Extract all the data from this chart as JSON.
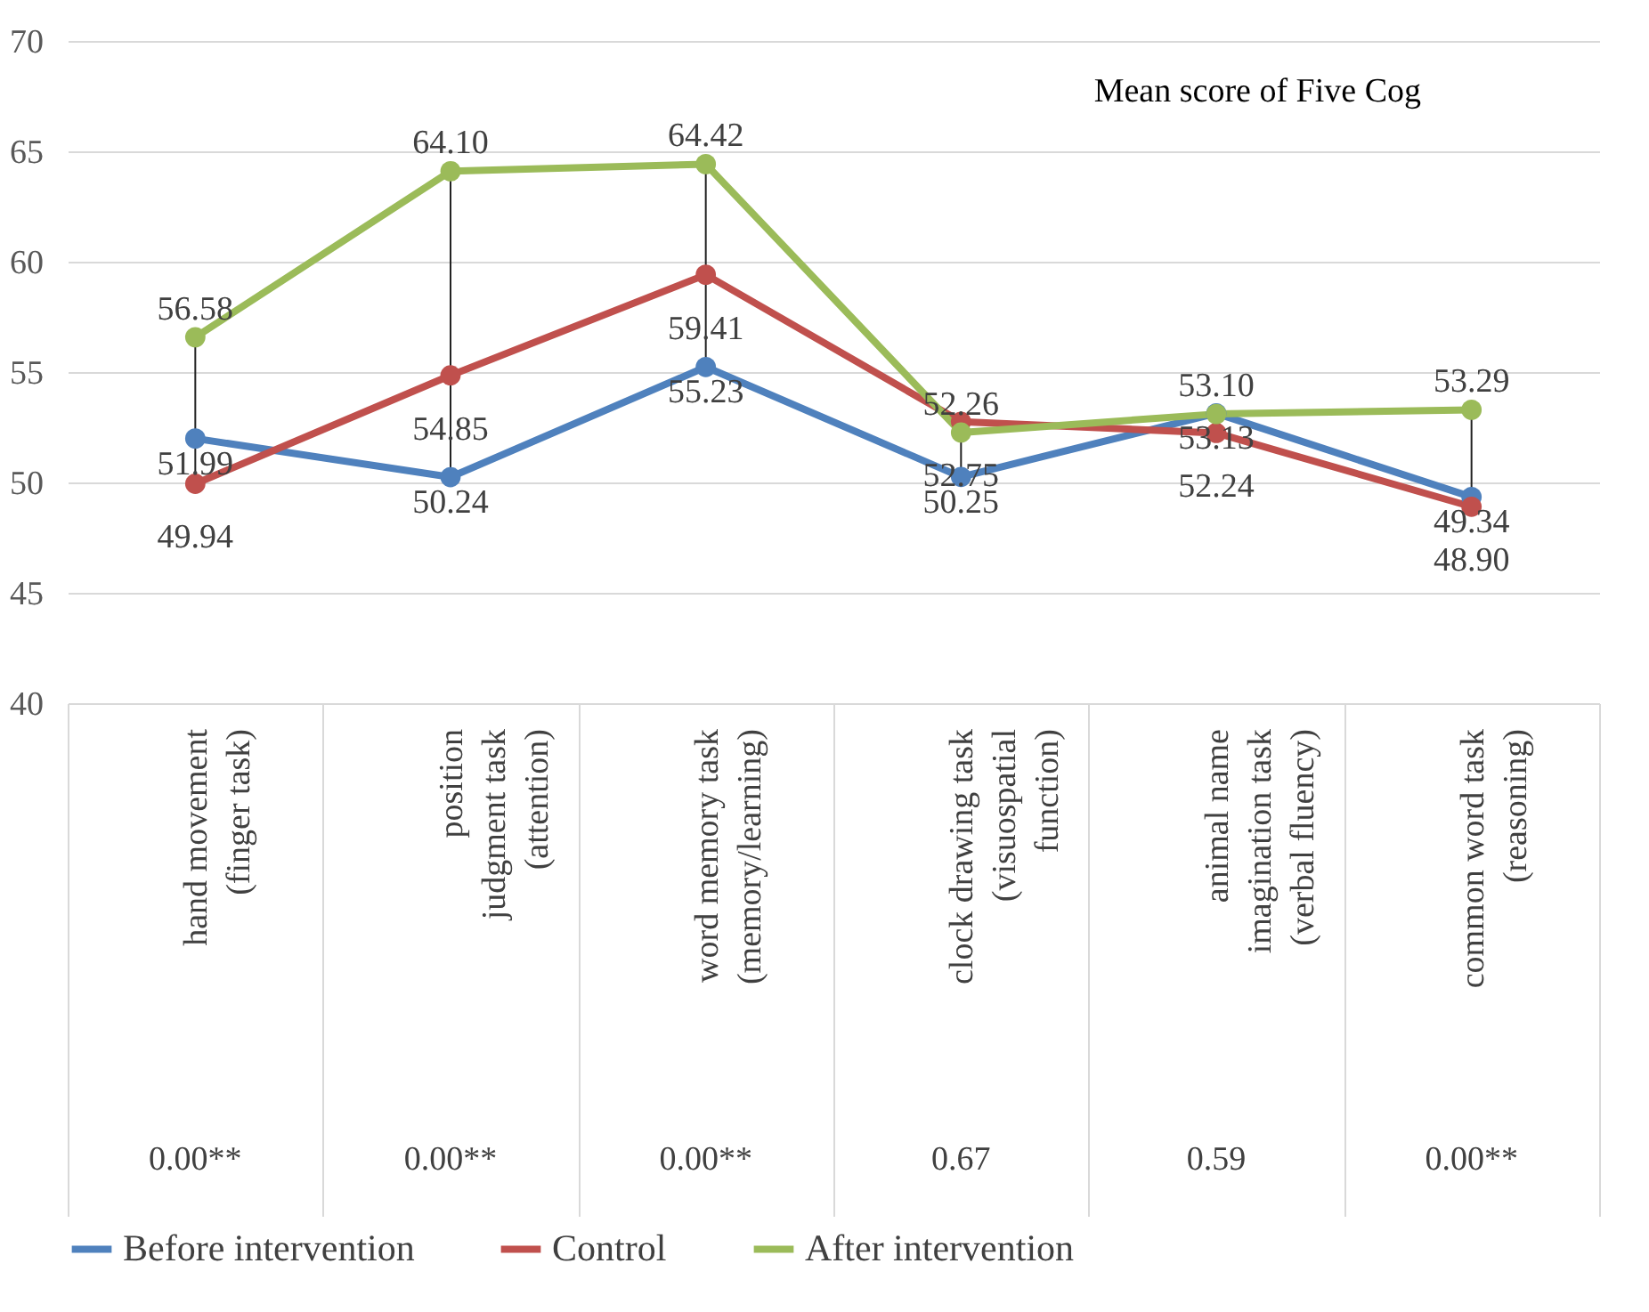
{
  "chart_data": {
    "type": "line",
    "title": "Mean score of Five Cog",
    "categories": [
      "hand movement\n(finger task)",
      "position\njudgment task\n(attention)",
      "word memory task\n(memory/learning)",
      "clock drawing task\n(visuospatial\nfunction)",
      "animal name\nimagination task\n(verbal fluency)",
      "common word task\n(reasoning)"
    ],
    "series": [
      {
        "name": "Before intervention",
        "color": "#4f81bd",
        "values": [
          51.99,
          50.24,
          55.23,
          50.25,
          53.13,
          49.34
        ],
        "value_labels": [
          "51.99",
          "50.24",
          "55.23",
          "50.25",
          "53.13",
          "49.34"
        ]
      },
      {
        "name": "Control",
        "color": "#c0504d",
        "values": [
          49.94,
          54.85,
          59.41,
          52.75,
          52.24,
          48.9
        ],
        "value_labels": [
          "49.94",
          "54.85",
          "59.41",
          "52.75",
          "52.24",
          "48.90"
        ]
      },
      {
        "name": "After intervention",
        "color": "#9bbb59",
        "values": [
          56.58,
          64.1,
          64.42,
          52.26,
          53.1,
          53.29
        ],
        "value_labels": [
          "56.58",
          "64.10",
          "64.42",
          "52.26",
          "53.10",
          "53.29"
        ]
      }
    ],
    "ylim": [
      40,
      70
    ],
    "yticks": [
      40,
      45,
      50,
      55,
      60,
      65,
      70
    ],
    "grid": "y",
    "legend": "bottom",
    "marker": "circle",
    "line_style": "solid",
    "annotations": [
      "0.00**",
      "0.00**",
      "0.00**",
      "0.67",
      "0.59",
      "0.00**"
    ]
  }
}
